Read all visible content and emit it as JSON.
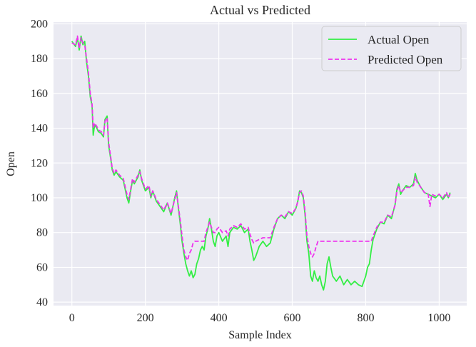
{
  "chart_data": {
    "type": "line",
    "title": "Actual vs Predicted",
    "xlabel": "Sample Index",
    "ylabel": "Open",
    "xlim": [
      -50,
      1075
    ],
    "ylim": [
      38,
      201
    ],
    "xticks": [
      0,
      200,
      400,
      600,
      800,
      1000
    ],
    "yticks": [
      40,
      60,
      80,
      100,
      120,
      140,
      160,
      180,
      200
    ],
    "grid": true,
    "legend_position": "top-right",
    "series": [
      {
        "name": "Actual Open",
        "color": "#33ee44",
        "style": "solid",
        "points": [
          [
            0,
            190
          ],
          [
            10,
            187
          ],
          [
            15,
            192
          ],
          [
            20,
            185
          ],
          [
            25,
            193
          ],
          [
            30,
            188
          ],
          [
            35,
            190
          ],
          [
            40,
            178
          ],
          [
            45,
            170
          ],
          [
            50,
            158
          ],
          [
            55,
            153
          ],
          [
            58,
            136
          ],
          [
            62,
            142
          ],
          [
            68,
            140
          ],
          [
            72,
            138
          ],
          [
            80,
            137
          ],
          [
            86,
            135
          ],
          [
            90,
            145
          ],
          [
            96,
            147
          ],
          [
            100,
            130
          ],
          [
            106,
            122
          ],
          [
            110,
            116
          ],
          [
            115,
            113
          ],
          [
            120,
            115
          ],
          [
            130,
            112
          ],
          [
            140,
            110
          ],
          [
            150,
            100
          ],
          [
            155,
            97
          ],
          [
            160,
            104
          ],
          [
            165,
            110
          ],
          [
            170,
            108
          ],
          [
            180,
            112
          ],
          [
            185,
            116
          ],
          [
            190,
            110
          ],
          [
            200,
            104
          ],
          [
            210,
            106
          ],
          [
            215,
            100
          ],
          [
            220,
            104
          ],
          [
            230,
            98
          ],
          [
            240,
            95
          ],
          [
            250,
            92
          ],
          [
            260,
            97
          ],
          [
            270,
            90
          ],
          [
            275,
            95
          ],
          [
            280,
            100
          ],
          [
            285,
            104
          ],
          [
            290,
            94
          ],
          [
            295,
            85
          ],
          [
            300,
            75
          ],
          [
            305,
            68
          ],
          [
            310,
            62
          ],
          [
            315,
            58
          ],
          [
            320,
            55
          ],
          [
            325,
            58
          ],
          [
            330,
            54
          ],
          [
            335,
            56
          ],
          [
            340,
            62
          ],
          [
            345,
            65
          ],
          [
            350,
            70
          ],
          [
            355,
            72
          ],
          [
            360,
            70
          ],
          [
            365,
            78
          ],
          [
            370,
            82
          ],
          [
            375,
            88
          ],
          [
            380,
            82
          ],
          [
            385,
            75
          ],
          [
            390,
            72
          ],
          [
            395,
            78
          ],
          [
            400,
            80
          ],
          [
            410,
            75
          ],
          [
            420,
            78
          ],
          [
            425,
            72
          ],
          [
            430,
            80
          ],
          [
            440,
            83
          ],
          [
            450,
            82
          ],
          [
            460,
            84
          ],
          [
            470,
            80
          ],
          [
            480,
            82
          ],
          [
            485,
            75
          ],
          [
            490,
            70
          ],
          [
            495,
            64
          ],
          [
            500,
            66
          ],
          [
            510,
            72
          ],
          [
            520,
            75
          ],
          [
            530,
            72
          ],
          [
            540,
            74
          ],
          [
            550,
            82
          ],
          [
            560,
            88
          ],
          [
            570,
            90
          ],
          [
            580,
            88
          ],
          [
            590,
            92
          ],
          [
            600,
            90
          ],
          [
            610,
            94
          ],
          [
            615,
            98
          ],
          [
            620,
            104
          ],
          [
            625,
            103
          ],
          [
            630,
            100
          ],
          [
            635,
            90
          ],
          [
            640,
            75
          ],
          [
            645,
            68
          ],
          [
            650,
            55
          ],
          [
            655,
            52
          ],
          [
            660,
            58
          ],
          [
            665,
            54
          ],
          [
            670,
            52
          ],
          [
            675,
            55
          ],
          [
            680,
            50
          ],
          [
            685,
            47
          ],
          [
            690,
            52
          ],
          [
            695,
            62
          ],
          [
            700,
            66
          ],
          [
            705,
            60
          ],
          [
            710,
            55
          ],
          [
            720,
            52
          ],
          [
            730,
            55
          ],
          [
            740,
            50
          ],
          [
            750,
            53
          ],
          [
            760,
            50
          ],
          [
            770,
            52
          ],
          [
            780,
            50
          ],
          [
            790,
            49
          ],
          [
            800,
            55
          ],
          [
            805,
            60
          ],
          [
            810,
            62
          ],
          [
            815,
            70
          ],
          [
            820,
            76
          ],
          [
            830,
            82
          ],
          [
            840,
            86
          ],
          [
            850,
            85
          ],
          [
            860,
            90
          ],
          [
            870,
            88
          ],
          [
            880,
            96
          ],
          [
            885,
            105
          ],
          [
            890,
            108
          ],
          [
            895,
            102
          ],
          [
            900,
            104
          ],
          [
            910,
            107
          ],
          [
            920,
            106
          ],
          [
            930,
            108
          ],
          [
            935,
            114
          ],
          [
            940,
            110
          ],
          [
            950,
            106
          ],
          [
            960,
            103
          ],
          [
            970,
            102
          ],
          [
            980,
            101
          ],
          [
            990,
            100
          ],
          [
            1000,
            102
          ],
          [
            1010,
            99
          ],
          [
            1020,
            102
          ],
          [
            1025,
            100
          ],
          [
            1030,
            103
          ]
        ]
      },
      {
        "name": "Predicted Open",
        "color": "#ee33ee",
        "style": "dashed",
        "points": [
          [
            0,
            189
          ],
          [
            10,
            188
          ],
          [
            15,
            193
          ],
          [
            20,
            186
          ],
          [
            25,
            192
          ],
          [
            30,
            189
          ],
          [
            35,
            188
          ],
          [
            40,
            180
          ],
          [
            45,
            172
          ],
          [
            50,
            160
          ],
          [
            55,
            154
          ],
          [
            58,
            140
          ],
          [
            62,
            143
          ],
          [
            68,
            141
          ],
          [
            72,
            139
          ],
          [
            80,
            138
          ],
          [
            86,
            136
          ],
          [
            90,
            144
          ],
          [
            96,
            146
          ],
          [
            100,
            132
          ],
          [
            106,
            123
          ],
          [
            110,
            117
          ],
          [
            115,
            114
          ],
          [
            120,
            116
          ],
          [
            130,
            113
          ],
          [
            140,
            111
          ],
          [
            150,
            102
          ],
          [
            155,
            99
          ],
          [
            160,
            105
          ],
          [
            165,
            111
          ],
          [
            170,
            109
          ],
          [
            180,
            113
          ],
          [
            185,
            115
          ],
          [
            190,
            111
          ],
          [
            200,
            105
          ],
          [
            210,
            107
          ],
          [
            215,
            101
          ],
          [
            220,
            104
          ],
          [
            230,
            99
          ],
          [
            240,
            96
          ],
          [
            250,
            93
          ],
          [
            260,
            97
          ],
          [
            270,
            91
          ],
          [
            275,
            95
          ],
          [
            280,
            99
          ],
          [
            285,
            103
          ],
          [
            290,
            95
          ],
          [
            295,
            87
          ],
          [
            300,
            78
          ],
          [
            305,
            70
          ],
          [
            310,
            66
          ],
          [
            315,
            64
          ],
          [
            320,
            68
          ],
          [
            325,
            70
          ],
          [
            330,
            74
          ],
          [
            335,
            75
          ],
          [
            350,
            75
          ],
          [
            360,
            75
          ],
          [
            365,
            80
          ],
          [
            370,
            83
          ],
          [
            375,
            86
          ],
          [
            380,
            83
          ],
          [
            385,
            80
          ],
          [
            390,
            80
          ],
          [
            395,
            82
          ],
          [
            400,
            83
          ],
          [
            410,
            80
          ],
          [
            420,
            81
          ],
          [
            425,
            78
          ],
          [
            430,
            82
          ],
          [
            440,
            84
          ],
          [
            450,
            83
          ],
          [
            460,
            85
          ],
          [
            470,
            82
          ],
          [
            480,
            83
          ],
          [
            485,
            79
          ],
          [
            490,
            76
          ],
          [
            495,
            74
          ],
          [
            500,
            75
          ],
          [
            510,
            76
          ],
          [
            520,
            77
          ],
          [
            530,
            77
          ],
          [
            540,
            77
          ],
          [
            550,
            83
          ],
          [
            560,
            88
          ],
          [
            570,
            90
          ],
          [
            580,
            89
          ],
          [
            590,
            92
          ],
          [
            600,
            91
          ],
          [
            610,
            94
          ],
          [
            615,
            98
          ],
          [
            620,
            103
          ],
          [
            625,
            104
          ],
          [
            630,
            101
          ],
          [
            635,
            92
          ],
          [
            640,
            78
          ],
          [
            645,
            72
          ],
          [
            650,
            68
          ],
          [
            655,
            66
          ],
          [
            660,
            68
          ],
          [
            665,
            72
          ],
          [
            670,
            75
          ],
          [
            680,
            75
          ],
          [
            700,
            75
          ],
          [
            720,
            75
          ],
          [
            740,
            75
          ],
          [
            760,
            75
          ],
          [
            780,
            75
          ],
          [
            800,
            75
          ],
          [
            810,
            75
          ],
          [
            815,
            75
          ],
          [
            820,
            78
          ],
          [
            830,
            83
          ],
          [
            840,
            86
          ],
          [
            850,
            86
          ],
          [
            860,
            90
          ],
          [
            870,
            89
          ],
          [
            880,
            96
          ],
          [
            885,
            104
          ],
          [
            890,
            107
          ],
          [
            895,
            103
          ],
          [
            900,
            104
          ],
          [
            910,
            106
          ],
          [
            920,
            106
          ],
          [
            930,
            107
          ],
          [
            935,
            112
          ],
          [
            940,
            109
          ],
          [
            950,
            106
          ],
          [
            960,
            103
          ],
          [
            970,
            102
          ],
          [
            975,
            95
          ],
          [
            980,
            102
          ],
          [
            990,
            101
          ],
          [
            1000,
            102
          ],
          [
            1010,
            100
          ],
          [
            1020,
            103
          ],
          [
            1025,
            100
          ],
          [
            1030,
            102
          ]
        ]
      }
    ]
  }
}
